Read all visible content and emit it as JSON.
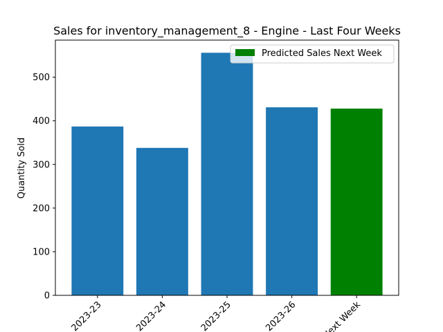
{
  "chart_data": {
    "type": "bar",
    "title": "Sales for inventory_management_8 - Engine - Last Four Weeks",
    "xlabel": "",
    "ylabel": "Quantity Sold",
    "categories": [
      "2023-23",
      "2023-24",
      "2023-25",
      "2023-26",
      "Next Week"
    ],
    "values": [
      387,
      338,
      556,
      431,
      428
    ],
    "colors": [
      "#1f77b4",
      "#1f77b4",
      "#1f77b4",
      "#1f77b4",
      "#008000"
    ],
    "ylim": [
      0,
      585
    ],
    "yticks": [
      0,
      100,
      200,
      300,
      400,
      500
    ],
    "grid": false,
    "legend": {
      "placement": "upper right",
      "entries": [
        {
          "label": "Predicted Sales Next Week",
          "color": "#008000"
        }
      ]
    }
  }
}
